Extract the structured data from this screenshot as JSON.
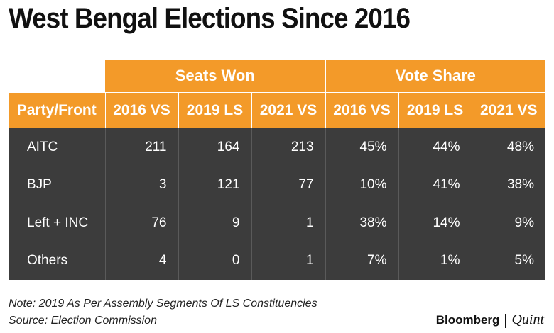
{
  "title": "West Bengal Elections Since 2016",
  "table": {
    "group_headers": [
      "Seats Won",
      "Vote Share"
    ],
    "column_headers": [
      "Party/Front",
      "2016 VS",
      "2019 LS",
      "2021 VS",
      "2016 VS",
      "2019 LS",
      "2021 VS"
    ],
    "rows": [
      {
        "party": "AITC",
        "cells": [
          "211",
          "164",
          "213",
          "45%",
          "44%",
          "48%"
        ]
      },
      {
        "party": "BJP",
        "cells": [
          "3",
          "121",
          "77",
          "10%",
          "41%",
          "38%"
        ]
      },
      {
        "party": "Left + INC",
        "cells": [
          "76",
          "9",
          "1",
          "38%",
          "14%",
          "9%"
        ]
      },
      {
        "party": "Others",
        "cells": [
          "4",
          "0",
          "1",
          "7%",
          "1%",
          "5%"
        ]
      }
    ]
  },
  "chart_data": {
    "type": "table",
    "title": "West Bengal Elections Since 2016",
    "columns": [
      "Party/Front",
      "Seats Won 2016 VS",
      "Seats Won 2019 LS",
      "Seats Won 2021 VS",
      "Vote Share 2016 VS",
      "Vote Share 2019 LS",
      "Vote Share 2021 VS"
    ],
    "rows": [
      [
        "AITC",
        211,
        164,
        213,
        45,
        44,
        48
      ],
      [
        "BJP",
        3,
        121,
        77,
        10,
        41,
        38
      ],
      [
        "Left + INC",
        76,
        9,
        1,
        38,
        14,
        9
      ],
      [
        "Others",
        4,
        0,
        1,
        7,
        1,
        5
      ]
    ]
  },
  "note": "Note: 2019 As Per Assembly Segments Of LS Constituencies",
  "source": "Source: Election Commission",
  "logo": {
    "left": "Bloomberg",
    "right": "Quint"
  },
  "colors": {
    "header": "#f39a29",
    "body": "#3c3c3c",
    "rule": "#f0b88c"
  }
}
